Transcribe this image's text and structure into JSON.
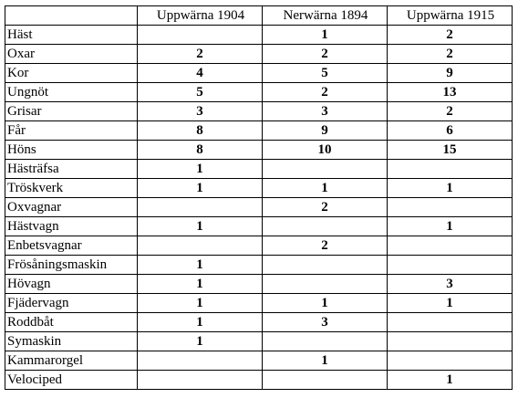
{
  "table": {
    "headers": [
      "",
      "Uppwärna 1904",
      "Nerwärna 1894",
      "Uppwärna 1915"
    ],
    "rows": [
      {
        "label": "Häst",
        "values": [
          "",
          "1",
          "2"
        ]
      },
      {
        "label": "Oxar",
        "values": [
          "2",
          "2",
          "2"
        ]
      },
      {
        "label": "Kor",
        "values": [
          "4",
          "5",
          "9"
        ]
      },
      {
        "label": "Ungnöt",
        "values": [
          "5",
          "2",
          "13"
        ]
      },
      {
        "label": "Grisar",
        "values": [
          "3",
          "3",
          "2"
        ]
      },
      {
        "label": "Får",
        "values": [
          "8",
          "9",
          "6"
        ]
      },
      {
        "label": "Höns",
        "values": [
          "8",
          "10",
          "15"
        ]
      },
      {
        "label": "Hästräfsa",
        "values": [
          "1",
          "",
          ""
        ]
      },
      {
        "label": "Tröskverk",
        "values": [
          "1",
          "1",
          "1"
        ]
      },
      {
        "label": "Oxvagnar",
        "values": [
          "",
          "2",
          ""
        ]
      },
      {
        "label": "Hästvagn",
        "values": [
          "1",
          "",
          "1"
        ]
      },
      {
        "label": "Enbetsvagnar",
        "values": [
          "",
          "2",
          ""
        ]
      },
      {
        "label": "Frösåningsmaskin",
        "values": [
          "1",
          "",
          ""
        ]
      },
      {
        "label": "Hövagn",
        "values": [
          "1",
          "",
          "3"
        ]
      },
      {
        "label": "Fjädervagn",
        "values": [
          "1",
          "1",
          "1"
        ]
      },
      {
        "label": "Roddbåt",
        "values": [
          "1",
          "3",
          ""
        ]
      },
      {
        "label": "Symaskin",
        "values": [
          "1",
          "",
          ""
        ]
      },
      {
        "label": "Kammarorgel",
        "values": [
          "",
          "1",
          ""
        ]
      },
      {
        "label": "Velociped",
        "values": [
          "",
          "",
          "1"
        ]
      }
    ]
  }
}
